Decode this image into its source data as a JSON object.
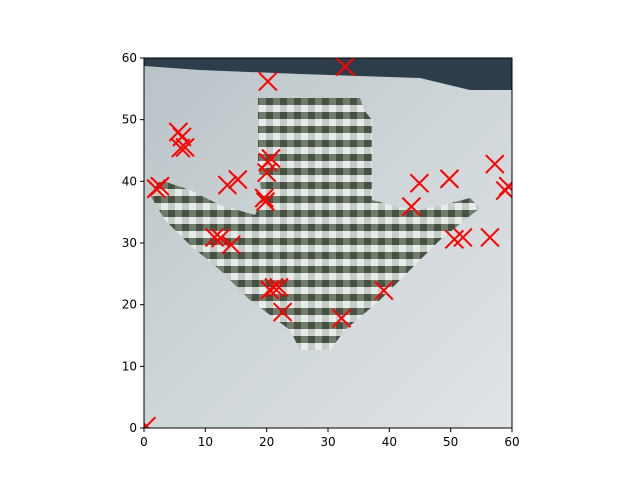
{
  "chart_data": {
    "type": "scatter",
    "title": "",
    "xlabel": "",
    "ylabel": "",
    "xlim": [
      0,
      60
    ],
    "ylim": [
      0,
      60
    ],
    "x_ticks": [
      0,
      10,
      20,
      30,
      40,
      50,
      60
    ],
    "y_ticks": [
      0,
      10,
      20,
      30,
      40,
      50,
      60
    ],
    "x_tick_labels": [
      "0",
      "10",
      "20",
      "30",
      "40",
      "50",
      "60"
    ],
    "y_tick_labels": [
      "0",
      "10",
      "20",
      "30",
      "40",
      "50",
      "60"
    ],
    "grid": false,
    "marker": "x",
    "marker_color": "#ff0000",
    "background_image": "pixelated photo of a downward-pointing arrow sign (grey-green camouflage texture on pale grey background, dark band along top edge)",
    "series": [
      {
        "points": [
          [
            2.0,
            38.8
          ],
          [
            2.6,
            39.2
          ],
          [
            5.6,
            48.0
          ],
          [
            6.2,
            47.2
          ],
          [
            6.0,
            45.4
          ],
          [
            6.7,
            45.5
          ],
          [
            11.5,
            30.9
          ],
          [
            12.5,
            30.8
          ],
          [
            13.6,
            39.4
          ],
          [
            14.2,
            29.7
          ],
          [
            15.3,
            40.3
          ],
          [
            19.6,
            37.3
          ],
          [
            19.8,
            36.7
          ],
          [
            20.0,
            41.4
          ],
          [
            20.2,
            43.1
          ],
          [
            20.7,
            43.7
          ],
          [
            21.2,
            22.8
          ],
          [
            20.5,
            22.4
          ],
          [
            20.2,
            56.2
          ],
          [
            22.0,
            22.8
          ],
          [
            22.6,
            18.8
          ],
          [
            32.2,
            17.8
          ],
          [
            32.8,
            58.6
          ],
          [
            39.1,
            22.3
          ],
          [
            43.6,
            35.9
          ],
          [
            44.9,
            39.7
          ],
          [
            49.8,
            40.4
          ],
          [
            50.6,
            30.6
          ],
          [
            52.0,
            30.9
          ],
          [
            56.4,
            30.9
          ],
          [
            57.2,
            42.8
          ],
          [
            58.9,
            38.5
          ],
          [
            59.4,
            39.2
          ]
        ]
      }
    ],
    "partial_marker": [
      0.4,
      0.3
    ]
  }
}
